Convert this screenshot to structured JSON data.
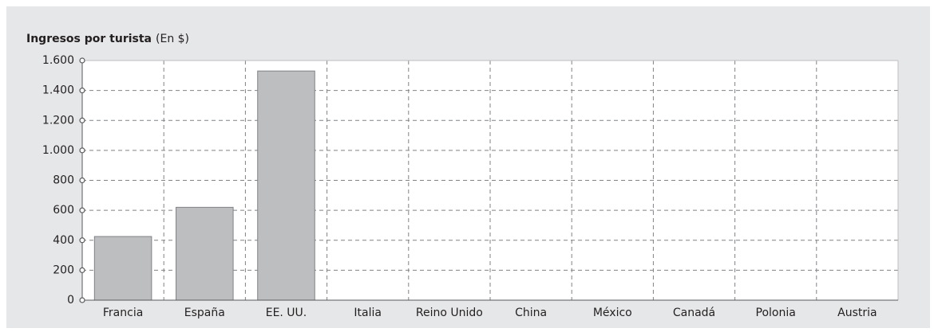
{
  "chart_data": {
    "type": "bar",
    "title": "Ingresos por turista",
    "unit": "(En $)",
    "categories": [
      "Francia",
      "España",
      "EE. UU.",
      "Italia",
      "Reino Unido",
      "China",
      "México",
      "Canadá",
      "Polonia",
      "Austria"
    ],
    "values": [
      425,
      620,
      1530,
      null,
      null,
      null,
      null,
      null,
      null,
      null
    ],
    "color": "#bcbec0",
    "ylim": [
      0,
      1600
    ],
    "yticks": [
      0,
      200,
      400,
      600,
      800,
      {
        "value": 1000,
        "label": "1.000"
      },
      {
        "value": 1200,
        "label": "1.200"
      },
      {
        "value": 1400,
        "label": "1.400"
      },
      {
        "value": 1600,
        "label": "1.600"
      }
    ],
    "grid": true
  }
}
